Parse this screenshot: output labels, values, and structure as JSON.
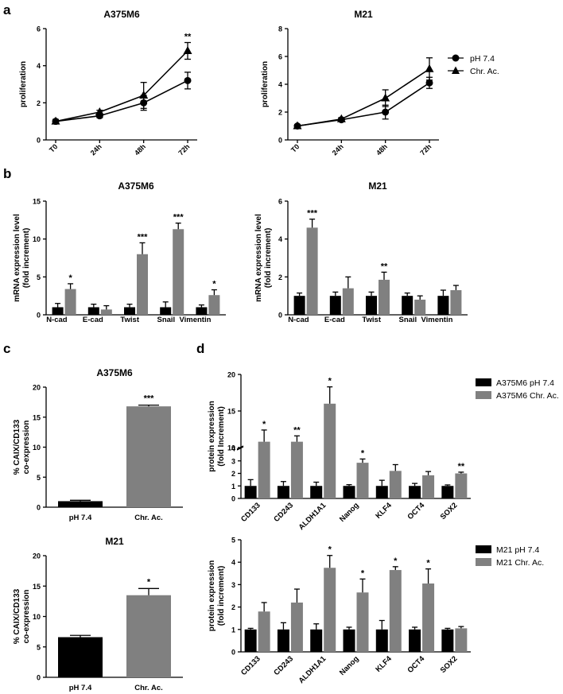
{
  "colors": {
    "black": "#000000",
    "gray": "#808080"
  },
  "panel_labels": [
    "a",
    "b",
    "c",
    "d"
  ],
  "chart_data": [
    {
      "id": "a1",
      "panel": "a",
      "type": "line",
      "title": "A375M6",
      "ylabel": "proliferation",
      "xlabel": "",
      "ylim": [
        0,
        6
      ],
      "yticks": [
        0,
        2,
        4,
        6
      ],
      "categories": [
        "T0",
        "24h",
        "48h",
        "72h"
      ],
      "series": [
        {
          "name": "pH 7.4",
          "marker": "circle",
          "values": [
            1.0,
            1.3,
            2.0,
            3.2
          ],
          "errors": [
            0.1,
            0.1,
            0.4,
            0.45
          ]
        },
        {
          "name": "Chr. Ac.",
          "marker": "triangle",
          "values": [
            1.0,
            1.5,
            2.4,
            4.8
          ],
          "errors": [
            0.1,
            0.1,
            0.7,
            0.45
          ]
        }
      ],
      "annotations": [
        {
          "category": "72h",
          "y": 5.5,
          "text": "**"
        }
      ]
    },
    {
      "id": "a2",
      "panel": "a",
      "type": "line",
      "title": "M21",
      "ylabel": "proliferation",
      "xlabel": "",
      "ylim": [
        0,
        8
      ],
      "yticks": [
        0,
        2,
        4,
        6,
        8
      ],
      "categories": [
        "T0",
        "24h",
        "48h",
        "72h"
      ],
      "series": [
        {
          "name": "pH 7.4",
          "marker": "circle",
          "values": [
            1.0,
            1.45,
            2.0,
            4.1
          ],
          "errors": [
            0.1,
            0.1,
            0.5,
            0.4
          ]
        },
        {
          "name": "Chr. Ac.",
          "marker": "triangle",
          "values": [
            1.0,
            1.5,
            3.0,
            5.1
          ],
          "errors": [
            0.1,
            0.1,
            0.6,
            0.8
          ]
        }
      ],
      "annotations": [],
      "legend": {
        "placement": "right",
        "entries": [
          "pH 7.4",
          "Chr. Ac."
        ]
      }
    },
    {
      "id": "b1",
      "panel": "b",
      "type": "bar",
      "title": "A375M6",
      "ylabel": [
        "mRNA expression level",
        "(fold increment)"
      ],
      "ylim": [
        0,
        15
      ],
      "yticks": [
        0,
        5,
        10,
        15
      ],
      "categories": [
        "N-cad",
        "E-cad",
        "Twist",
        "Snail",
        "Vimentin"
      ],
      "series": [
        {
          "name": "pH 7.4",
          "color": "#000000",
          "values": [
            1.0,
            1.0,
            1.0,
            1.0,
            1.0
          ],
          "errors": [
            0.5,
            0.4,
            0.4,
            0.7,
            0.3
          ]
        },
        {
          "name": "Chr Ac",
          "color": "#808080",
          "values": [
            3.4,
            0.7,
            8.0,
            11.3,
            2.6
          ],
          "errors": [
            0.7,
            0.5,
            1.5,
            0.8,
            0.7
          ]
        }
      ],
      "annotations": [
        {
          "category": "N-cad",
          "text": "*"
        },
        {
          "category": "Twist",
          "text": "***"
        },
        {
          "category": "Snail",
          "text": "***"
        },
        {
          "category": "Vimentin",
          "text": "*"
        }
      ]
    },
    {
      "id": "b2",
      "panel": "b",
      "type": "bar",
      "title": "M21",
      "ylabel": [
        "mRNA expression level",
        "(fold increment)"
      ],
      "ylim": [
        0,
        6
      ],
      "yticks": [
        0,
        2,
        4,
        6
      ],
      "categories": [
        "N-cad",
        "E-cad",
        "Twist",
        "Snail",
        "Vimentin"
      ],
      "series": [
        {
          "name": "pH 7.4",
          "color": "#000000",
          "values": [
            1.0,
            1.0,
            1.0,
            1.0,
            1.0
          ],
          "errors": [
            0.15,
            0.2,
            0.2,
            0.15,
            0.3
          ]
        },
        {
          "name": "Chr Ac",
          "color": "#808080",
          "values": [
            4.6,
            1.4,
            1.85,
            0.8,
            1.3
          ],
          "errors": [
            0.45,
            0.6,
            0.4,
            0.2,
            0.25
          ]
        }
      ],
      "annotations": [
        {
          "category": "N-cad",
          "text": "***"
        },
        {
          "category": "Twist",
          "text": "**"
        }
      ],
      "legend": {
        "placement": "right",
        "entries": [
          "pH 7.4",
          "Chr Ac"
        ]
      }
    },
    {
      "id": "c1",
      "panel": "c",
      "type": "bar",
      "title": "A375M6",
      "ylabel": [
        "% CAIX/CD133",
        "co-expression"
      ],
      "ylim": [
        0,
        20
      ],
      "yticks": [
        0,
        5,
        10,
        15,
        20
      ],
      "categories": [
        "pH 7.4",
        "Chr. Ac."
      ],
      "values": [
        1.0,
        16.8
      ],
      "errors": [
        0.15,
        0.2
      ],
      "colors": [
        "#000000",
        "#808080"
      ],
      "annotations": [
        {
          "category": "Chr. Ac.",
          "text": "***"
        }
      ]
    },
    {
      "id": "c2",
      "panel": "c",
      "type": "bar",
      "title": "M21",
      "ylabel": [
        "% CAIX/CD133",
        "co-expression"
      ],
      "ylim": [
        0,
        20
      ],
      "yticks": [
        0,
        5,
        10,
        15,
        20
      ],
      "categories": [
        "pH 7.4",
        "Chr. Ac."
      ],
      "values": [
        6.6,
        13.5
      ],
      "errors": [
        0.3,
        1.1
      ],
      "colors": [
        "#000000",
        "#808080"
      ],
      "annotations": [
        {
          "category": "Chr. Ac.",
          "text": "*"
        }
      ]
    },
    {
      "id": "d1",
      "panel": "d",
      "type": "bar",
      "title": "",
      "ylabel": [
        "protein expression",
        "(fold Increment)"
      ],
      "broken_axis": {
        "lower": [
          0,
          4
        ],
        "upper": [
          10,
          20
        ]
      },
      "yticks": [
        0,
        1,
        2,
        3,
        4,
        10,
        15,
        20
      ],
      "categories": [
        "CD133",
        "CD243",
        "ALDH1A1",
        "Nanog",
        "KLF4",
        "OCT4",
        "SOX2"
      ],
      "series": [
        {
          "name": "A375M6 pH 7.4",
          "color": "#000000",
          "values": [
            1.0,
            1.0,
            1.0,
            1.0,
            1.0,
            1.0,
            1.0
          ],
          "errors": [
            0.5,
            0.35,
            0.3,
            0.1,
            0.45,
            0.2,
            0.08
          ]
        },
        {
          "name": "A375M6 Chr. Ac.",
          "color": "#808080",
          "values": [
            10.8,
            10.8,
            16.0,
            2.85,
            2.2,
            1.85,
            2.0
          ],
          "errors": [
            1.6,
            0.8,
            2.3,
            0.3,
            0.5,
            0.3,
            0.1
          ]
        }
      ],
      "annotations": [
        {
          "category": "CD133",
          "text": "*"
        },
        {
          "category": "CD243",
          "text": "**"
        },
        {
          "category": "ALDH1A1",
          "text": "*"
        },
        {
          "category": "Nanog",
          "text": "*"
        },
        {
          "category": "SOX2",
          "text": "**"
        }
      ],
      "legend": {
        "placement": "right",
        "entries": [
          "A375M6 pH 7.4",
          "A375M6 Chr. Ac."
        ]
      }
    },
    {
      "id": "d2",
      "panel": "d",
      "type": "bar",
      "title": "",
      "ylabel": [
        "protein expression",
        "(fold increment)"
      ],
      "ylim": [
        0,
        5
      ],
      "yticks": [
        0,
        1,
        2,
        3,
        4,
        5
      ],
      "categories": [
        "CD133",
        "CD243",
        "ALDH1A1",
        "Nanog",
        "KLF4",
        "OCT4",
        "SOX2"
      ],
      "series": [
        {
          "name": "M21 pH 7.4",
          "color": "#000000",
          "values": [
            1.0,
            1.0,
            1.0,
            1.0,
            1.0,
            1.0,
            1.0
          ],
          "errors": [
            0.05,
            0.3,
            0.25,
            0.1,
            0.4,
            0.1,
            0.05
          ]
        },
        {
          "name": "M21 Chr. Ac.",
          "color": "#808080",
          "values": [
            1.8,
            2.2,
            3.75,
            2.65,
            3.65,
            3.05,
            1.05
          ],
          "errors": [
            0.4,
            0.6,
            0.55,
            0.6,
            0.15,
            0.65,
            0.08
          ]
        }
      ],
      "annotations": [
        {
          "category": "ALDH1A1",
          "text": "*"
        },
        {
          "category": "Nanog",
          "text": "*"
        },
        {
          "category": "KLF4",
          "text": "*"
        },
        {
          "category": "OCT4",
          "text": "*"
        }
      ],
      "legend": {
        "placement": "right",
        "entries": [
          "M21 pH 7.4",
          "M21 Chr. Ac."
        ]
      }
    }
  ]
}
